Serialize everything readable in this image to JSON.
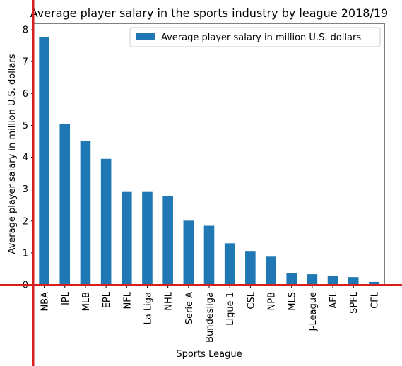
{
  "chart_data": {
    "type": "bar",
    "title": "Average player salary in the sports industry by league 2018/19",
    "xlabel": "Sports League",
    "ylabel": "Average player salary in million U.S. dollars",
    "categories": [
      "NBA",
      "IPL",
      "MLB",
      "EPL",
      "NFL",
      "La Liga",
      "NHL",
      "Serie A",
      "Bundesliga",
      "Ligue 1",
      "CSL",
      "NPB",
      "MLS",
      "J-League",
      "AFL",
      "SPFL",
      "CFL"
    ],
    "series": [
      {
        "name": "Average player salary in million U.S. dollars",
        "values": [
          7.77,
          5.05,
          4.51,
          3.95,
          2.91,
          2.91,
          2.78,
          2.01,
          1.85,
          1.3,
          1.06,
          0.88,
          0.37,
          0.33,
          0.27,
          0.24,
          0.09
        ]
      }
    ],
    "ylim": [
      0,
      8.2
    ],
    "yticks": [
      0,
      1,
      2,
      3,
      4,
      5,
      6,
      7,
      8
    ],
    "legend_position": "top-right",
    "grid": false,
    "colors": {
      "bar": "#1f77b4",
      "overlay_lines": "#d62020"
    }
  }
}
